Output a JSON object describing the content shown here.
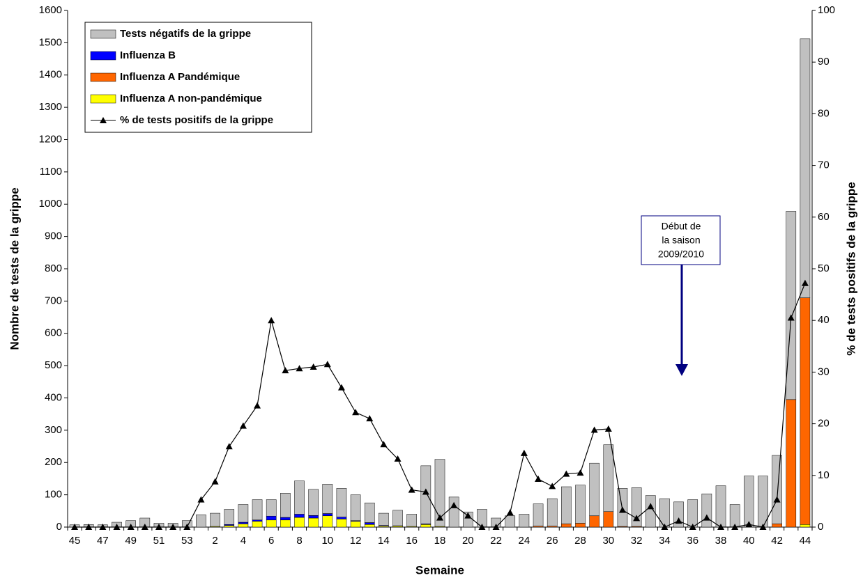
{
  "chart_data": {
    "type": "bar",
    "stacked": true,
    "x_label": "Semaine",
    "y_label": "Nombre de tests de la grippe",
    "y2_label": "% de tests positifs de la grippe",
    "categories": [
      "45",
      null,
      "47",
      null,
      "49",
      null,
      "51",
      null,
      "53",
      null,
      "2",
      null,
      "4",
      null,
      "6",
      null,
      "8",
      null,
      "10",
      null,
      "12",
      null,
      "14",
      null,
      "16",
      null,
      "18",
      null,
      "20",
      null,
      "22",
      null,
      "24",
      null,
      "26",
      null,
      "28",
      null,
      "30",
      null,
      "32",
      null,
      "34",
      null,
      "36",
      null,
      "38",
      null,
      "40",
      null,
      "42",
      null,
      "44"
    ],
    "ylim": [
      0,
      1600
    ],
    "yticks": [
      0,
      100,
      200,
      300,
      400,
      500,
      600,
      700,
      800,
      900,
      1000,
      1100,
      1200,
      1300,
      1400,
      1500,
      1600
    ],
    "y2lim": [
      0,
      100
    ],
    "y2ticks": [
      0,
      10,
      20,
      30,
      40,
      50,
      60,
      70,
      80,
      90,
      100
    ],
    "grid": false,
    "legend": "upper left",
    "series": [
      {
        "name": "Influenza A non-pandémique",
        "color": "#ffff00",
        "values": [
          0,
          0,
          0,
          0,
          0,
          0,
          0,
          0,
          0,
          0,
          2,
          5,
          10,
          18,
          22,
          22,
          30,
          28,
          35,
          25,
          18,
          8,
          3,
          3,
          2,
          8,
          2,
          0,
          0,
          0,
          0,
          0,
          0,
          0,
          0,
          0,
          0,
          0,
          0,
          0,
          0,
          0,
          0,
          0,
          0,
          0,
          0,
          0,
          0,
          0,
          0,
          0,
          8
        ]
      },
      {
        "name": "Influenza A Pandémique",
        "color": "#ff6600",
        "values": [
          0,
          0,
          0,
          0,
          0,
          0,
          0,
          0,
          0,
          0,
          0,
          0,
          0,
          0,
          0,
          0,
          0,
          0,
          0,
          0,
          0,
          0,
          0,
          0,
          0,
          0,
          0,
          0,
          0,
          0,
          0,
          0,
          0,
          3,
          3,
          10,
          12,
          35,
          48,
          2,
          2,
          0,
          0,
          0,
          0,
          0,
          0,
          0,
          0,
          0,
          10,
          395,
          702
        ]
      },
      {
        "name": "Influenza B",
        "color": "#0000ff",
        "values": [
          0,
          0,
          0,
          0,
          0,
          0,
          0,
          0,
          0,
          0,
          0,
          3,
          5,
          4,
          12,
          8,
          10,
          8,
          7,
          6,
          2,
          6,
          2,
          1,
          0,
          2,
          0,
          0,
          0,
          0,
          0,
          0,
          0,
          0,
          0,
          0,
          0,
          0,
          0,
          0,
          0,
          0,
          0,
          0,
          0,
          0,
          0,
          0,
          0,
          0,
          0,
          0,
          0
        ]
      },
      {
        "name": "Tests négatifs de la grippe",
        "color": "#c0c0c0",
        "values": [
          7,
          8,
          7,
          15,
          20,
          28,
          12,
          12,
          20,
          38,
          41,
          47,
          55,
          63,
          51,
          75,
          103,
          81,
          91,
          89,
          80,
          61,
          38,
          48,
          38,
          180,
          208,
          93,
          47,
          55,
          28,
          35,
          40,
          69,
          85,
          115,
          118,
          163,
          207,
          118,
          120,
          98,
          88,
          78,
          85,
          103,
          128,
          70,
          158,
          158,
          212,
          583,
          802
        ]
      },
      {
        "name": "% de tests positifs de la grippe",
        "type": "line",
        "axis": "y2",
        "color": "#000000",
        "values": [
          0,
          0,
          0,
          0,
          0,
          0,
          0,
          0,
          0,
          5.3,
          8.8,
          15.6,
          19.6,
          23.5,
          40,
          30.3,
          30.7,
          31,
          31.5,
          27,
          22.2,
          21,
          16,
          13.2,
          7.2,
          6.8,
          1.8,
          4.2,
          2.2,
          0,
          0,
          2.8,
          14.3,
          9.3,
          7.9,
          10.3,
          10.5,
          18.8,
          19,
          3.3,
          1.7,
          4,
          0,
          1.2,
          0,
          1.8,
          0,
          0,
          0.5,
          0,
          5.3,
          40.5,
          47.2
        ]
      }
    ],
    "annotation": [
      "Début de",
      "la saison",
      "2009/2010"
    ]
  }
}
